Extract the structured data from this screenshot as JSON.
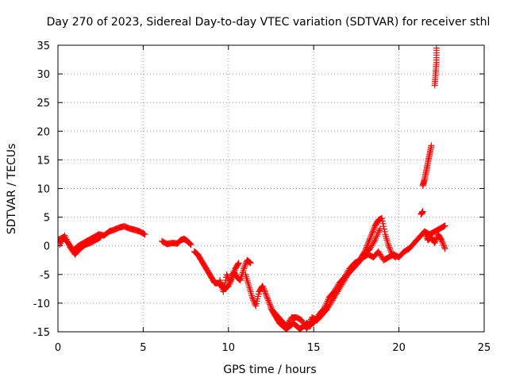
{
  "chart_data": {
    "type": "scatter",
    "title": "Day 270 of 2023, Sidereal Day-to-day VTEC variation (SDTVAR) for receiver sthl",
    "xlabel": "GPS time / hours",
    "ylabel": "SDTVAR / TECUs",
    "xlim": [
      0,
      25
    ],
    "ylim": [
      -15,
      35
    ],
    "xticks": [
      0,
      5,
      10,
      15,
      20,
      25
    ],
    "yticks": [
      -15,
      -10,
      -5,
      0,
      5,
      10,
      15,
      20,
      25,
      30,
      35
    ],
    "grid": true,
    "marker": "+",
    "color": "#ff0000",
    "series": [
      {
        "name": "SDTVAR",
        "segments": [
          {
            "x": [
              0.0,
              0.3,
              0.6,
              0.9,
              1.2,
              1.5,
              1.8,
              2.1,
              2.4,
              2.7,
              3.0,
              3.3,
              3.6,
              3.9,
              4.2,
              4.5,
              4.8,
              5.1
            ],
            "y": [
              1.0,
              1.5,
              0.5,
              -0.8,
              0.0,
              0.5,
              1.0,
              1.5,
              2.0,
              1.8,
              2.5,
              2.8,
              3.2,
              3.4,
              3.0,
              2.8,
              2.5,
              2.0
            ]
          },
          {
            "x": [
              0.1,
              0.4,
              0.7,
              1.0,
              1.3,
              1.6,
              1.9,
              2.2,
              2.5
            ],
            "y": [
              0.2,
              1.8,
              -0.2,
              -1.5,
              -0.5,
              0.2,
              0.5,
              1.0,
              1.5
            ]
          },
          {
            "x": [
              6.1,
              6.4,
              6.7,
              7.0,
              7.2,
              7.4,
              7.6,
              7.8
            ],
            "y": [
              0.8,
              0.3,
              0.5,
              0.4,
              1.0,
              1.2,
              0.8,
              0.2
            ]
          },
          {
            "x": [
              8.0,
              8.2,
              8.4,
              8.6,
              8.8,
              9.0,
              9.2,
              9.4,
              9.6,
              9.8,
              10.0,
              10.2,
              10.4,
              10.6
            ],
            "y": [
              -1.0,
              -1.5,
              -2.5,
              -3.5,
              -4.5,
              -5.5,
              -6.5,
              -6.5,
              -7.0,
              -7.5,
              -7.0,
              -5.5,
              -4.0,
              -3.0
            ]
          },
          {
            "x": [
              9.5,
              9.7,
              9.9,
              10.1,
              10.3,
              10.5,
              10.7,
              10.9,
              11.1,
              11.3
            ],
            "y": [
              -6.0,
              -8.0,
              -5.0,
              -6.5,
              -4.5,
              -5.5,
              -6.0,
              -4.0,
              -2.5,
              -3.0
            ]
          },
          {
            "x": [
              11.0,
              11.2,
              11.4,
              11.6,
              11.8,
              12.0,
              12.2,
              12.4,
              12.6,
              12.8,
              13.0,
              13.2,
              13.4,
              13.6,
              13.8,
              14.0,
              14.2,
              14.4,
              14.6,
              14.8,
              15.0
            ],
            "y": [
              -5.0,
              -7.0,
              -9.0,
              -10.5,
              -8.0,
              -7.0,
              -8.5,
              -10.0,
              -11.5,
              -12.5,
              -13.5,
              -14.0,
              -14.5,
              -14.0,
              -13.5,
              -14.0,
              -14.5,
              -14.0,
              -13.5,
              -14.0,
              -13.0
            ]
          },
          {
            "x": [
              12.5,
              12.8,
              13.1,
              13.4,
              13.7,
              14.0,
              14.3,
              14.6,
              14.9,
              15.2,
              15.5,
              15.8,
              16.1,
              16.4,
              16.7,
              17.0,
              17.3,
              17.6,
              17.9,
              18.2
            ],
            "y": [
              -11.0,
              -12.0,
              -13.0,
              -14.0,
              -12.5,
              -12.5,
              -13.0,
              -14.5,
              -12.5,
              -13.0,
              -12.0,
              -11.0,
              -9.5,
              -8.0,
              -6.5,
              -5.0,
              -4.0,
              -3.0,
              -2.0,
              -1.5
            ]
          },
          {
            "x": [
              15.0,
              15.3,
              15.6,
              15.9,
              16.2,
              16.5,
              16.8,
              17.1,
              17.4,
              17.7,
              18.0,
              18.3,
              18.6,
              18.9
            ],
            "y": [
              -13.5,
              -12.0,
              -11.0,
              -9.0,
              -8.0,
              -6.5,
              -5.5,
              -4.0,
              -3.0,
              -2.5,
              -1.5,
              -0.5,
              1.0,
              3.0
            ]
          },
          {
            "x": [
              17.8,
              18.0,
              18.2,
              18.4,
              18.6,
              18.8,
              19.0,
              19.2,
              19.4,
              19.6,
              19.8
            ],
            "y": [
              -2.0,
              -1.0,
              0.5,
              2.0,
              3.5,
              4.5,
              4.8,
              2.0,
              0.0,
              -1.5,
              -2.0
            ]
          },
          {
            "x": [
              18.2,
              18.5,
              18.8,
              19.1,
              19.4,
              19.7,
              20.0,
              20.3,
              20.6,
              20.9,
              21.2,
              21.5,
              21.8,
              22.1,
              22.4,
              22.7
            ],
            "y": [
              -1.5,
              -2.0,
              -1.0,
              -2.5,
              -2.0,
              -1.5,
              -2.0,
              -1.0,
              -0.5,
              0.5,
              1.5,
              2.5,
              2.0,
              2.5,
              3.0,
              3.5
            ]
          },
          {
            "x": [
              21.3,
              21.4
            ],
            "y": [
              5.5,
              6.0
            ]
          },
          {
            "x": [
              21.4,
              21.5,
              21.6,
              21.7,
              21.8,
              21.9
            ],
            "y": [
              10.5,
              11.5,
              13.0,
              14.5,
              16.0,
              17.5
            ]
          },
          {
            "x": [
              21.5,
              21.7,
              21.9,
              22.1,
              22.3,
              22.5,
              22.7
            ],
            "y": [
              2.5,
              1.0,
              1.5,
              0.5,
              2.0,
              1.0,
              -0.5
            ]
          },
          {
            "x": [
              22.1,
              22.15,
              22.2,
              22.2
            ],
            "y": [
              28.0,
              30.0,
              32.0,
              34.5
            ]
          }
        ]
      }
    ]
  }
}
